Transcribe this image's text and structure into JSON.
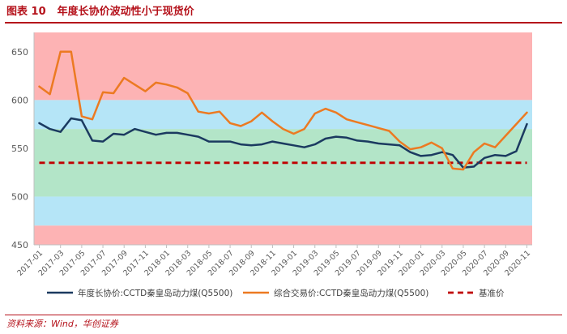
{
  "figure": {
    "number": "图表 10",
    "title": "年度长协价波动性小于现货价",
    "source": "资料来源：Wind，华创证券"
  },
  "colors": {
    "accent": "#b5121b",
    "band_red": "#fdb3b4",
    "band_blue": "#b5e5f7",
    "band_green": "#b3e5c8",
    "series_navy": "#1b3a60",
    "series_orange": "#ec7a22",
    "baseline_red": "#c00000",
    "axis_text": "#595959"
  },
  "chart_data": {
    "type": "line",
    "title": "年度长协价波动性小于现货价",
    "xlabel": "",
    "ylabel": "",
    "ylim": [
      450,
      670
    ],
    "yticks": [
      450,
      500,
      550,
      600,
      650
    ],
    "x_tick_labels": [
      "2017-01",
      "2017-03",
      "2017-05",
      "2017-07",
      "2017-09",
      "2017-11",
      "2018-01",
      "2018-03",
      "2018-05",
      "2018-07",
      "2018-09",
      "2018-11",
      "2019-01",
      "2019-03",
      "2019-05",
      "2019-07",
      "2019-09",
      "2019-11",
      "2020-01",
      "2020-03",
      "2020-05",
      "2020-07",
      "2020-09",
      "2020-11"
    ],
    "bands": [
      {
        "from": 450,
        "to": 470,
        "color": "band_red"
      },
      {
        "from": 470,
        "to": 500,
        "color": "band_blue"
      },
      {
        "from": 500,
        "to": 570,
        "color": "band_green"
      },
      {
        "from": 570,
        "to": 600,
        "color": "band_blue"
      },
      {
        "from": 600,
        "to": 670,
        "color": "band_red"
      }
    ],
    "series": [
      {
        "name": "年度长协价:CCTD秦皇岛动力煤(Q5500)",
        "color": "series_navy",
        "style": "solid",
        "points": [
          [
            "2017-01",
            576
          ],
          [
            "2017-02",
            570
          ],
          [
            "2017-03",
            567
          ],
          [
            "2017-04",
            581
          ],
          [
            "2017-05",
            579
          ],
          [
            "2017-06",
            558
          ],
          [
            "2017-07",
            557
          ],
          [
            "2017-08",
            565
          ],
          [
            "2017-09",
            564
          ],
          [
            "2017-10",
            570
          ],
          [
            "2017-11",
            567
          ],
          [
            "2017-12",
            564
          ],
          [
            "2018-01",
            566
          ],
          [
            "2018-02",
            566
          ],
          [
            "2018-03",
            564
          ],
          [
            "2018-04",
            562
          ],
          [
            "2018-05",
            557
          ],
          [
            "2018-06",
            557
          ],
          [
            "2018-07",
            557
          ],
          [
            "2018-08",
            554
          ],
          [
            "2018-09",
            553
          ],
          [
            "2018-10",
            554
          ],
          [
            "2018-11",
            557
          ],
          [
            "2018-12",
            555
          ],
          [
            "2019-01",
            553
          ],
          [
            "2019-02",
            551
          ],
          [
            "2019-03",
            554
          ],
          [
            "2019-04",
            560
          ],
          [
            "2019-05",
            562
          ],
          [
            "2019-06",
            561
          ],
          [
            "2019-07",
            558
          ],
          [
            "2019-08",
            557
          ],
          [
            "2019-09",
            555
          ],
          [
            "2019-10",
            554
          ],
          [
            "2019-11",
            553
          ],
          [
            "2019-12",
            546
          ],
          [
            "2020-01",
            542
          ],
          [
            "2020-02",
            543
          ],
          [
            "2020-03",
            546
          ],
          [
            "2020-04",
            543
          ],
          [
            "2020-05",
            530
          ],
          [
            "2020-06",
            531
          ],
          [
            "2020-07",
            540
          ],
          [
            "2020-08",
            543
          ],
          [
            "2020-09",
            542
          ],
          [
            "2020-10",
            547
          ],
          [
            "2020-11",
            575
          ]
        ]
      },
      {
        "name": "综合交易价:CCTD秦皇岛动力煤(Q5500)",
        "color": "series_orange",
        "style": "solid",
        "points": [
          [
            "2017-01",
            614
          ],
          [
            "2017-02",
            606
          ],
          [
            "2017-03",
            650
          ],
          [
            "2017-04",
            650
          ],
          [
            "2017-05",
            583
          ],
          [
            "2017-06",
            580
          ],
          [
            "2017-07",
            608
          ],
          [
            "2017-08",
            607
          ],
          [
            "2017-09",
            623
          ],
          [
            "2017-10",
            616
          ],
          [
            "2017-11",
            609
          ],
          [
            "2017-12",
            618
          ],
          [
            "2018-01",
            616
          ],
          [
            "2018-02",
            613
          ],
          [
            "2018-03",
            607
          ],
          [
            "2018-04",
            588
          ],
          [
            "2018-05",
            586
          ],
          [
            "2018-06",
            588
          ],
          [
            "2018-07",
            576
          ],
          [
            "2018-08",
            573
          ],
          [
            "2018-09",
            578
          ],
          [
            "2018-10",
            587
          ],
          [
            "2018-11",
            578
          ],
          [
            "2018-12",
            570
          ],
          [
            "2019-01",
            565
          ],
          [
            "2019-02",
            570
          ],
          [
            "2019-03",
            586
          ],
          [
            "2019-04",
            591
          ],
          [
            "2019-05",
            587
          ],
          [
            "2019-06",
            580
          ],
          [
            "2019-07",
            577
          ],
          [
            "2019-08",
            574
          ],
          [
            "2019-09",
            571
          ],
          [
            "2019-10",
            568
          ],
          [
            "2019-11",
            557
          ],
          [
            "2019-12",
            549
          ],
          [
            "2020-01",
            551
          ],
          [
            "2020-02",
            556
          ],
          [
            "2020-03",
            550
          ],
          [
            "2020-04",
            529
          ],
          [
            "2020-05",
            528
          ],
          [
            "2020-06",
            546
          ],
          [
            "2020-07",
            555
          ],
          [
            "2020-08",
            551
          ],
          [
            "2020-09",
            563
          ],
          [
            "2020-10",
            575
          ],
          [
            "2020-11",
            587
          ]
        ]
      },
      {
        "name": "基准价",
        "color": "baseline_red",
        "style": "dashed",
        "points": [
          [
            "2017-01",
            535
          ],
          [
            "2020-11",
            535
          ]
        ]
      }
    ],
    "legend": {
      "position": "bottom",
      "labels": [
        "年度长协价:CCTD秦皇岛动力煤(Q5500)",
        "综合交易价:CCTD秦皇岛动力煤(Q5500)",
        "基准价"
      ]
    },
    "grid": false
  }
}
